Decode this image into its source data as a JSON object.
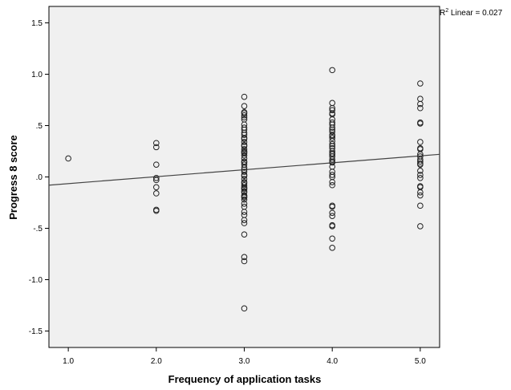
{
  "chart_data": {
    "type": "scatter",
    "title": "",
    "xlabel": "Frequency of application tasks",
    "ylabel": "Progress 8 score",
    "xlim": [
      0.78,
      5.22
    ],
    "ylim": [
      -1.66,
      1.66
    ],
    "x_ticks": [
      1.0,
      2.0,
      3.0,
      4.0,
      5.0
    ],
    "x_tick_labels": [
      "1.0",
      "2.0",
      "3.0",
      "4.0",
      "5.0"
    ],
    "y_ticks": [
      1.5,
      1.0,
      0.5,
      0.0,
      -0.5,
      -1.0,
      -1.5
    ],
    "y_tick_labels": [
      "1.5",
      "1.0",
      ".5",
      ".0",
      "-.5",
      "-1.0",
      "-1.5"
    ],
    "grid": false,
    "background_color": "#f0f0f0",
    "marker": "open-circle",
    "annotation": {
      "r2_label": "R",
      "r2_superscript": "2",
      "r2_text": " Linear = 0.027"
    },
    "fit_line": {
      "type": "linear",
      "x": [
        0.78,
        5.22
      ],
      "y": [
        -0.08,
        0.22
      ]
    },
    "series": [
      {
        "x": [
          1,
          2,
          2,
          2,
          2,
          2,
          2,
          2,
          2,
          2,
          3,
          3,
          3,
          3,
          3,
          3,
          3,
          3,
          3,
          3,
          3,
          3,
          3,
          3,
          3,
          3,
          3,
          3,
          3,
          3,
          3,
          3,
          3,
          3,
          3,
          3,
          3,
          3,
          3,
          3,
          3,
          3,
          3,
          3,
          3,
          3,
          3,
          3,
          3,
          3,
          3,
          3,
          3,
          3,
          3,
          3,
          3,
          3,
          3,
          3,
          3,
          3,
          3,
          3,
          4,
          4,
          4,
          4,
          4,
          4,
          4,
          4,
          4,
          4,
          4,
          4,
          4,
          4,
          4,
          4,
          4,
          4,
          4,
          4,
          4,
          4,
          4,
          4,
          4,
          4,
          4,
          4,
          4,
          4,
          4,
          4,
          4,
          4,
          4,
          4,
          4,
          4,
          4,
          4,
          5,
          5,
          5,
          5,
          5,
          5,
          5,
          5,
          5,
          5,
          5,
          5,
          5,
          5,
          5,
          5,
          5,
          5,
          5,
          5,
          5,
          5,
          5,
          5
        ],
        "y": [
          0.18,
          0.33,
          0.29,
          0.12,
          -0.01,
          -0.03,
          -0.1,
          -0.16,
          -0.32,
          -0.33,
          0.78,
          0.69,
          0.63,
          0.6,
          0.56,
          0.51,
          0.46,
          0.41,
          0.37,
          0.34,
          0.3,
          0.25,
          0.23,
          0.21,
          0.18,
          0.14,
          0.09,
          0.05,
          0.02,
          -0.02,
          -0.05,
          -0.08,
          -0.1,
          -0.12,
          -0.15,
          -0.18,
          -0.2,
          -0.22,
          -0.26,
          -0.29,
          -0.34,
          -0.42,
          -0.45,
          -0.56,
          -0.78,
          -0.82,
          -1.28,
          0.27,
          0.12,
          -0.06,
          0.62,
          0.38,
          0.15,
          -0.14,
          0.48,
          0.31,
          0.07,
          -0.19,
          -0.37,
          0.58,
          0.24,
          0.01,
          -0.11,
          0.43,
          1.04,
          0.72,
          0.67,
          0.65,
          0.61,
          0.56,
          0.51,
          0.48,
          0.44,
          0.41,
          0.38,
          0.35,
          0.32,
          0.28,
          0.23,
          0.22,
          0.2,
          0.17,
          0.14,
          0.1,
          0.05,
          0.02,
          -0.05,
          -0.08,
          -0.28,
          -0.29,
          -0.35,
          -0.38,
          -0.47,
          -0.48,
          -0.6,
          -0.69,
          0.62,
          0.46,
          0.3,
          0.25,
          0.15,
          0.0,
          0.4,
          0.53,
          0.91,
          0.76,
          0.71,
          0.67,
          0.53,
          0.52,
          0.34,
          0.28,
          0.27,
          0.2,
          0.17,
          0.13,
          0.12,
          0.06,
          0.02,
          -0.09,
          -0.1,
          -0.15,
          -0.18,
          -0.28,
          -0.48,
          0.22,
          0.15,
          -0.01
        ]
      }
    ]
  }
}
